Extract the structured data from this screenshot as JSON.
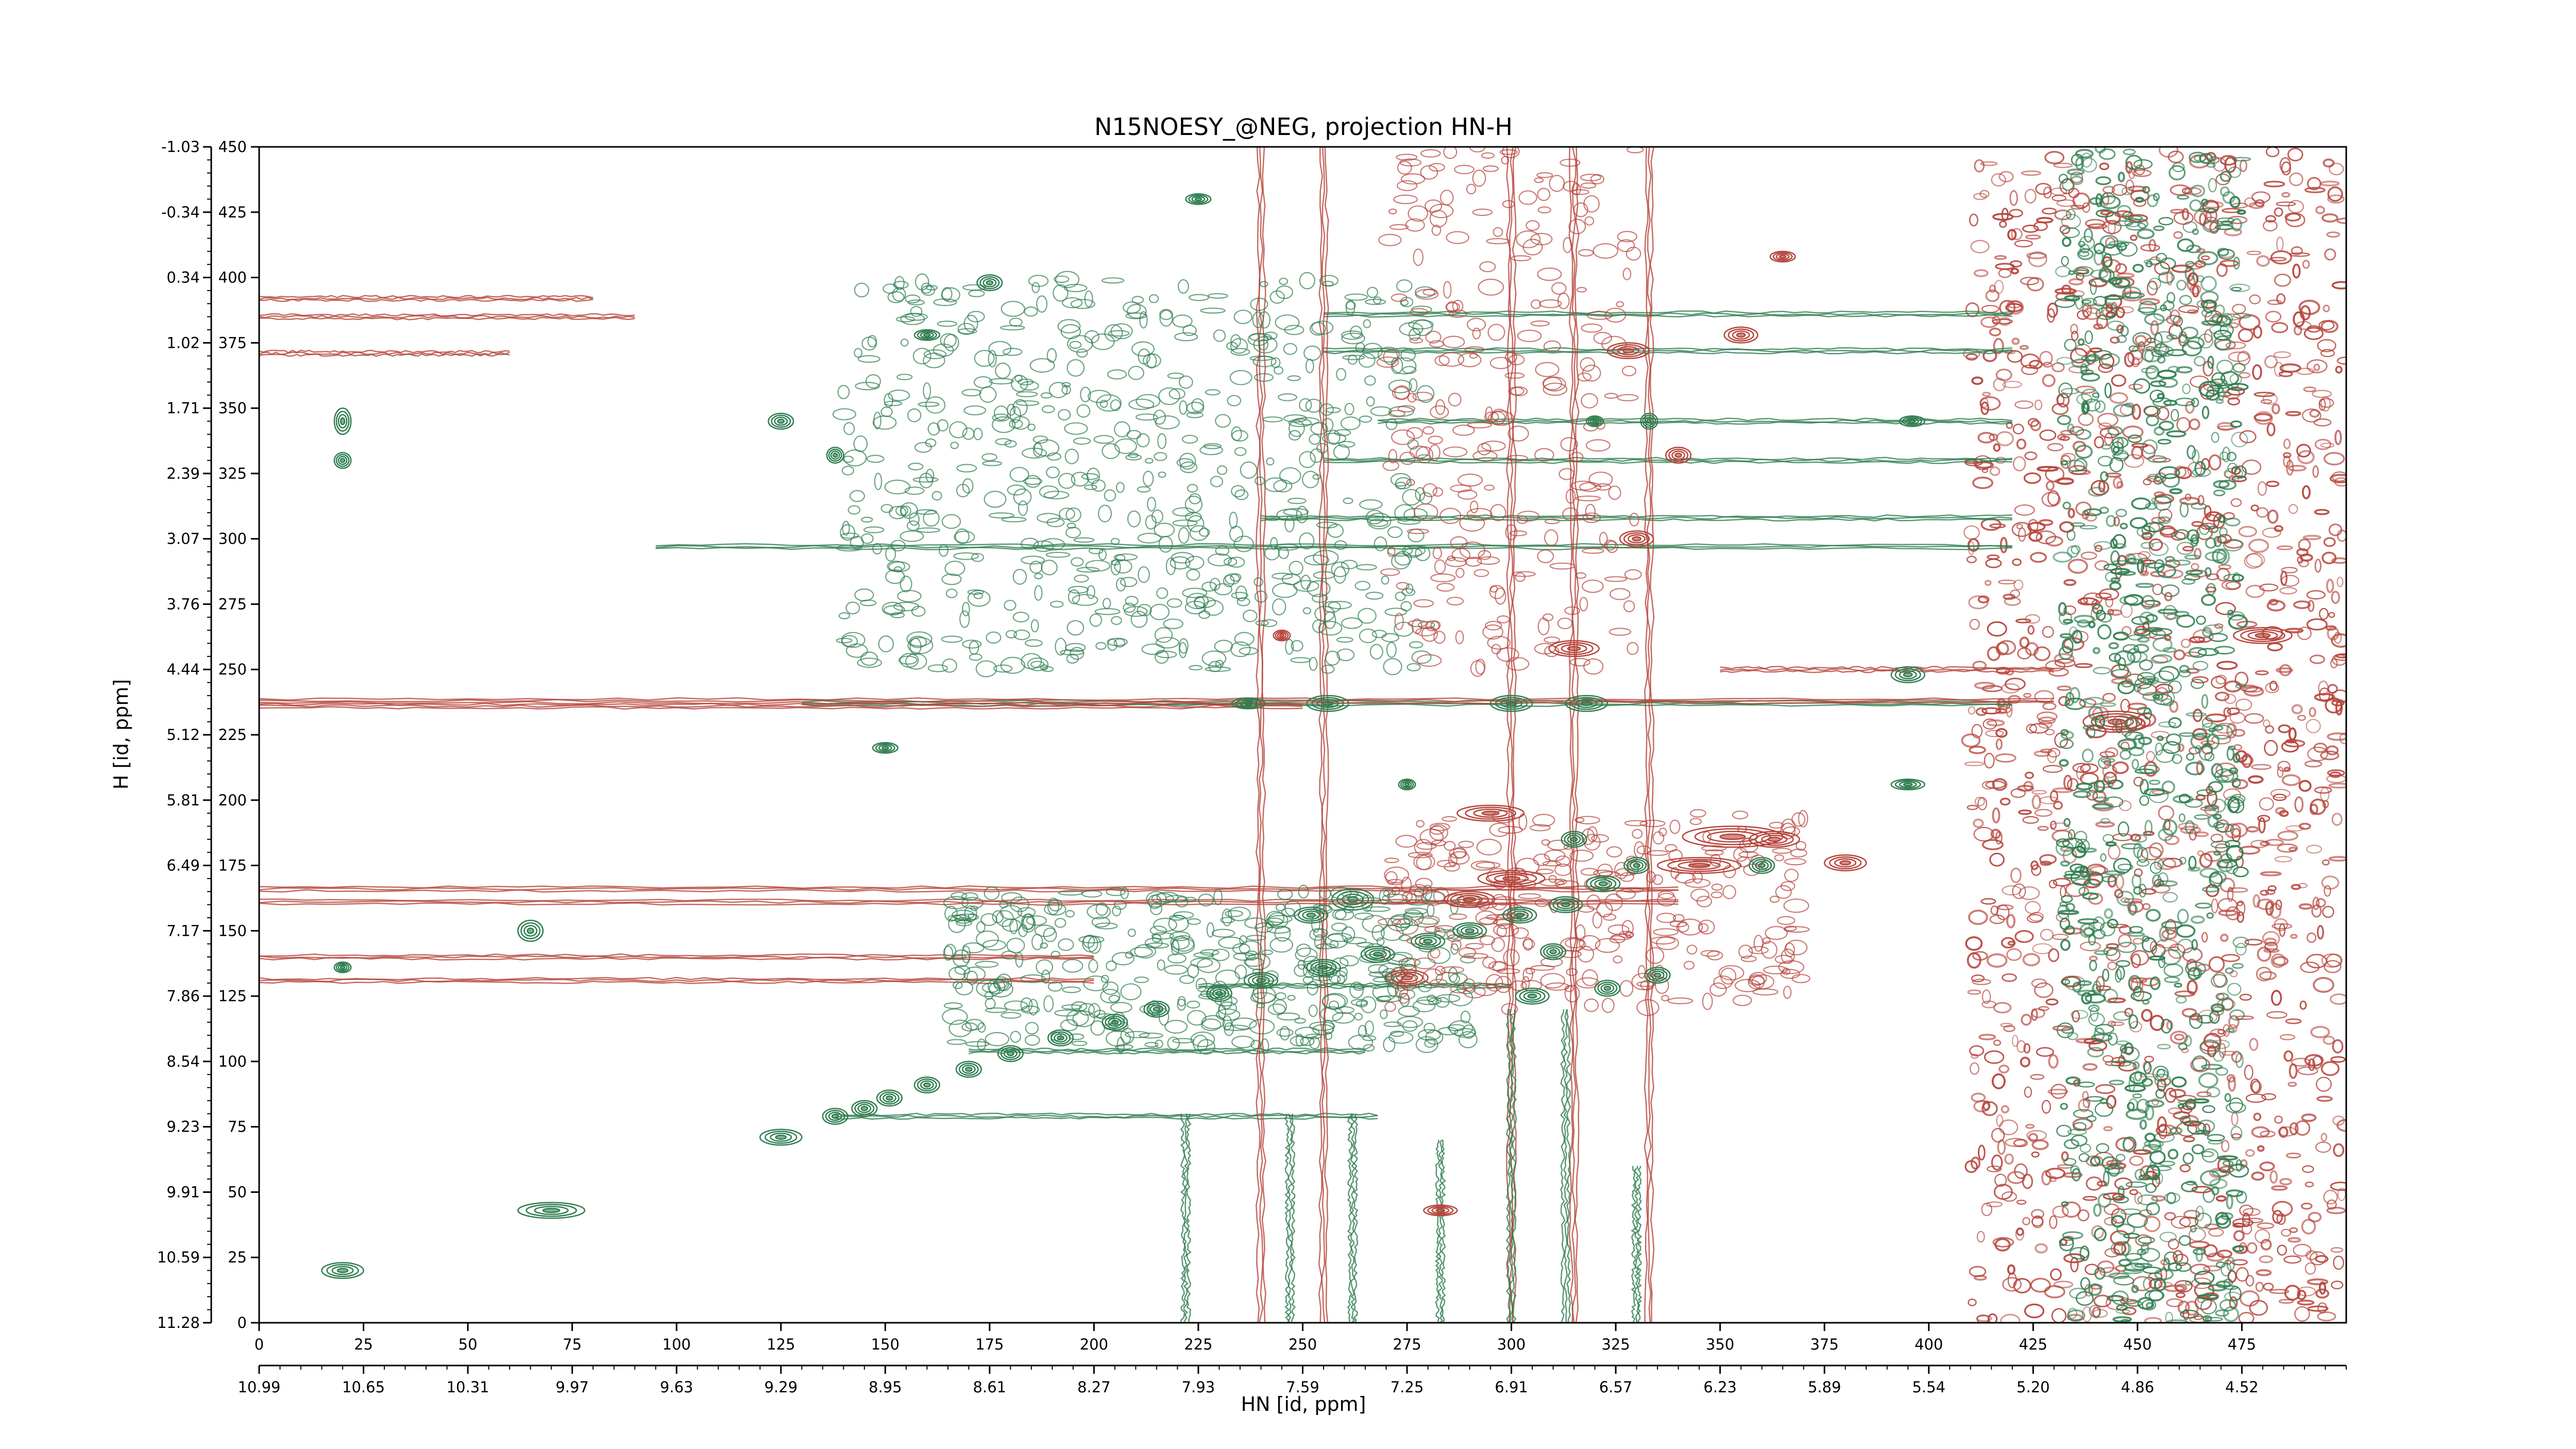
{
  "chart_data": {
    "type": "contour",
    "title": "N15NOESY_@NEG, projection HN-H",
    "xlabel": "HN [id, ppm]",
    "ylabel": "H [id, ppm]",
    "x_index_range": [
      0,
      500
    ],
    "y_index_range": [
      0,
      450
    ],
    "x_index_ticks": [
      "0",
      "25",
      "50",
      "75",
      "100",
      "125",
      "150",
      "175",
      "200",
      "225",
      "250",
      "275",
      "300",
      "325",
      "350",
      "375",
      "400",
      "425",
      "450",
      "475"
    ],
    "x_ppm_ticks": [
      "10.99",
      "10.65",
      "10.31",
      "9.97",
      "9.63",
      "9.29",
      "8.95",
      "8.61",
      "8.27",
      "7.93",
      "7.59",
      "7.25",
      "6.91",
      "6.57",
      "6.23",
      "5.89",
      "5.54",
      "5.20",
      "4.86",
      "4.52"
    ],
    "y_index_ticks": [
      "0",
      "25",
      "50",
      "75",
      "100",
      "125",
      "150",
      "175",
      "200",
      "225",
      "250",
      "275",
      "300",
      "325",
      "350",
      "375",
      "400",
      "425",
      "450"
    ],
    "y_ppm_ticks": [
      "11.28",
      "10.59",
      "9.91",
      "9.23",
      "8.54",
      "7.86",
      "7.17",
      "6.49",
      "5.81",
      "5.12",
      "4.44",
      "3.76",
      "3.07",
      "2.39",
      "1.71",
      "1.02",
      "0.34",
      "-0.34",
      "-1.03"
    ],
    "colors": {
      "positive": "#2e7d4f",
      "negative": "#b5433a"
    },
    "series": [
      {
        "sign": "positive",
        "peaks": [
          {
            "x": 20,
            "y": 20,
            "w": 5,
            "h": 3
          },
          {
            "x": 70,
            "y": 43,
            "w": 8,
            "h": 3
          },
          {
            "x": 125,
            "y": 71,
            "w": 5,
            "h": 3
          },
          {
            "x": 138,
            "y": 79,
            "w": 3,
            "h": 3
          },
          {
            "x": 145,
            "y": 82,
            "w": 3,
            "h": 3
          },
          {
            "x": 151,
            "y": 86,
            "w": 3,
            "h": 3
          },
          {
            "x": 160,
            "y": 91,
            "w": 3,
            "h": 3
          },
          {
            "x": 170,
            "y": 97,
            "w": 3,
            "h": 3
          },
          {
            "x": 180,
            "y": 103,
            "w": 3,
            "h": 3
          },
          {
            "x": 192,
            "y": 109,
            "w": 3,
            "h": 3
          },
          {
            "x": 205,
            "y": 115,
            "w": 3,
            "h": 3
          },
          {
            "x": 215,
            "y": 120,
            "w": 3,
            "h": 3
          },
          {
            "x": 230,
            "y": 126,
            "w": 3,
            "h": 3
          },
          {
            "x": 240,
            "y": 131,
            "w": 4,
            "h": 3
          },
          {
            "x": 255,
            "y": 136,
            "w": 4,
            "h": 3
          },
          {
            "x": 268,
            "y": 141,
            "w": 4,
            "h": 3
          },
          {
            "x": 65,
            "y": 150,
            "w": 3,
            "h": 4
          },
          {
            "x": 20,
            "y": 136,
            "w": 2,
            "h": 2
          },
          {
            "x": 20,
            "y": 345,
            "w": 2,
            "h": 5
          },
          {
            "x": 20,
            "y": 330,
            "w": 2,
            "h": 3
          },
          {
            "x": 125,
            "y": 345,
            "w": 3,
            "h": 3
          },
          {
            "x": 138,
            "y": 332,
            "w": 2,
            "h": 3
          },
          {
            "x": 160,
            "y": 378,
            "w": 3,
            "h": 2
          },
          {
            "x": 175,
            "y": 398,
            "w": 3,
            "h": 3
          },
          {
            "x": 225,
            "y": 430,
            "w": 3,
            "h": 2
          },
          {
            "x": 150,
            "y": 220,
            "w": 3,
            "h": 2
          },
          {
            "x": 275,
            "y": 206,
            "w": 2,
            "h": 2
          },
          {
            "x": 395,
            "y": 206,
            "w": 4,
            "h": 2
          },
          {
            "x": 395,
            "y": 248,
            "w": 4,
            "h": 3
          },
          {
            "x": 320,
            "y": 345,
            "w": 2,
            "h": 2
          },
          {
            "x": 333,
            "y": 345,
            "w": 2,
            "h": 3
          },
          {
            "x": 396,
            "y": 345,
            "w": 3,
            "h": 2
          },
          {
            "x": 300,
            "y": 237,
            "w": 5,
            "h": 3
          },
          {
            "x": 318,
            "y": 237,
            "w": 5,
            "h": 3
          },
          {
            "x": 256,
            "y": 237,
            "w": 5,
            "h": 3
          },
          {
            "x": 237,
            "y": 237,
            "w": 4,
            "h": 2
          },
          {
            "x": 330,
            "y": 175,
            "w": 3,
            "h": 3
          },
          {
            "x": 322,
            "y": 168,
            "w": 4,
            "h": 3
          },
          {
            "x": 313,
            "y": 160,
            "w": 4,
            "h": 3
          },
          {
            "x": 302,
            "y": 156,
            "w": 4,
            "h": 3
          },
          {
            "x": 290,
            "y": 150,
            "w": 4,
            "h": 3
          },
          {
            "x": 280,
            "y": 146,
            "w": 4,
            "h": 3
          },
          {
            "x": 262,
            "y": 162,
            "w": 5,
            "h": 4
          },
          {
            "x": 252,
            "y": 156,
            "w": 4,
            "h": 3
          },
          {
            "x": 305,
            "y": 125,
            "w": 4,
            "h": 3
          },
          {
            "x": 323,
            "y": 128,
            "w": 3,
            "h": 3
          },
          {
            "x": 335,
            "y": 133,
            "w": 3,
            "h": 3
          },
          {
            "x": 315,
            "y": 185,
            "w": 3,
            "h": 3
          },
          {
            "x": 360,
            "y": 175,
            "w": 3,
            "h": 3
          },
          {
            "x": 310,
            "y": 142,
            "w": 3,
            "h": 3
          }
        ]
      },
      {
        "sign": "negative",
        "peaks": [
          {
            "x": 283,
            "y": 43,
            "w": 4,
            "h": 2
          },
          {
            "x": 353,
            "y": 186,
            "w": 12,
            "h": 4
          },
          {
            "x": 345,
            "y": 175,
            "w": 10,
            "h": 3
          },
          {
            "x": 300,
            "y": 170,
            "w": 8,
            "h": 3
          },
          {
            "x": 290,
            "y": 162,
            "w": 6,
            "h": 3
          },
          {
            "x": 295,
            "y": 195,
            "w": 8,
            "h": 3
          },
          {
            "x": 275,
            "y": 132,
            "w": 5,
            "h": 3
          },
          {
            "x": 315,
            "y": 258,
            "w": 6,
            "h": 3
          },
          {
            "x": 328,
            "y": 372,
            "w": 5,
            "h": 3
          },
          {
            "x": 355,
            "y": 378,
            "w": 4,
            "h": 3
          },
          {
            "x": 365,
            "y": 408,
            "w": 3,
            "h": 2
          },
          {
            "x": 245,
            "y": 263,
            "w": 2,
            "h": 2
          },
          {
            "x": 330,
            "y": 300,
            "w": 4,
            "h": 3
          },
          {
            "x": 340,
            "y": 332,
            "w": 3,
            "h": 3
          },
          {
            "x": 363,
            "y": 185,
            "w": 6,
            "h": 3
          },
          {
            "x": 380,
            "y": 176,
            "w": 5,
            "h": 3
          },
          {
            "x": 445,
            "y": 230,
            "w": 8,
            "h": 4
          },
          {
            "x": 480,
            "y": 263,
            "w": 7,
            "h": 3
          }
        ]
      }
    ],
    "ridges": [
      {
        "sign": "positive",
        "axis": "x",
        "y": 79,
        "from": 138,
        "to": 268
      },
      {
        "sign": "positive",
        "axis": "x",
        "y": 104,
        "from": 170,
        "to": 265
      },
      {
        "sign": "positive",
        "axis": "x",
        "y": 129,
        "from": 225,
        "to": 300
      },
      {
        "sign": "positive",
        "axis": "x",
        "y": 297,
        "from": 95,
        "to": 420
      },
      {
        "sign": "positive",
        "axis": "x",
        "y": 308,
        "from": 240,
        "to": 420
      },
      {
        "sign": "positive",
        "axis": "x",
        "y": 330,
        "from": 255,
        "to": 420
      },
      {
        "sign": "positive",
        "axis": "x",
        "y": 345,
        "from": 268,
        "to": 420
      },
      {
        "sign": "positive",
        "axis": "x",
        "y": 372,
        "from": 255,
        "to": 420
      },
      {
        "sign": "positive",
        "axis": "x",
        "y": 386,
        "from": 255,
        "to": 420
      },
      {
        "sign": "positive",
        "axis": "x",
        "y": 237,
        "from": 130,
        "to": 420
      },
      {
        "sign": "negative",
        "axis": "x",
        "y": 238,
        "from": 0,
        "to": 430
      },
      {
        "sign": "negative",
        "axis": "x",
        "y": 236,
        "from": 0,
        "to": 250
      },
      {
        "sign": "negative",
        "axis": "x",
        "y": 392,
        "from": 0,
        "to": 80
      },
      {
        "sign": "negative",
        "axis": "x",
        "y": 385,
        "from": 0,
        "to": 90
      },
      {
        "sign": "negative",
        "axis": "x",
        "y": 371,
        "from": 0,
        "to": 60
      },
      {
        "sign": "negative",
        "axis": "x",
        "y": 166,
        "from": 0,
        "to": 340
      },
      {
        "sign": "negative",
        "axis": "x",
        "y": 161,
        "from": 0,
        "to": 340
      },
      {
        "sign": "negative",
        "axis": "x",
        "y": 140,
        "from": 0,
        "to": 200
      },
      {
        "sign": "negative",
        "axis": "x",
        "y": 131,
        "from": 0,
        "to": 200
      },
      {
        "sign": "negative",
        "axis": "x",
        "y": 250,
        "from": 350,
        "to": 430
      },
      {
        "sign": "negative",
        "axis": "y",
        "x": 240,
        "from": 0,
        "to": 450
      },
      {
        "sign": "negative",
        "axis": "y",
        "x": 255,
        "from": 0,
        "to": 450
      },
      {
        "sign": "negative",
        "axis": "y",
        "x": 300,
        "from": 0,
        "to": 450
      },
      {
        "sign": "negative",
        "axis": "y",
        "x": 315,
        "from": 0,
        "to": 450
      },
      {
        "sign": "negative",
        "axis": "y",
        "x": 333,
        "from": 0,
        "to": 450
      },
      {
        "sign": "positive",
        "axis": "y",
        "x": 222,
        "from": 0,
        "to": 80
      },
      {
        "sign": "positive",
        "axis": "y",
        "x": 247,
        "from": 0,
        "to": 80
      },
      {
        "sign": "positive",
        "axis": "y",
        "x": 262,
        "from": 0,
        "to": 80
      },
      {
        "sign": "positive",
        "axis": "y",
        "x": 300,
        "from": 0,
        "to": 120
      },
      {
        "sign": "positive",
        "axis": "y",
        "x": 313,
        "from": 0,
        "to": 120
      },
      {
        "sign": "positive",
        "axis": "y",
        "x": 330,
        "from": 0,
        "to": 60
      },
      {
        "sign": "positive",
        "axis": "y",
        "x": 283,
        "from": 0,
        "to": 70
      }
    ],
    "noise_bands": [
      {
        "x_from": 410,
        "x_to": 500,
        "sign": "negative"
      },
      {
        "x_from": 432,
        "x_to": 475,
        "sign": "positive"
      }
    ]
  }
}
